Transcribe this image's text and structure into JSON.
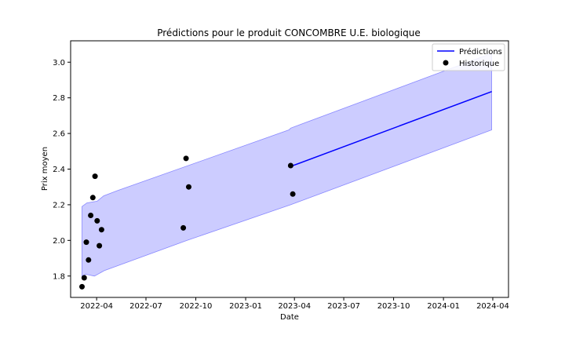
{
  "chart_data": {
    "type": "line",
    "title": "Prédictions pour le produit CONCOMBRE U.E. biologique",
    "xlabel": "Date",
    "ylabel": "Prix moyen",
    "xlim": [
      "2022-02-12",
      "2024-04-30"
    ],
    "ylim": [
      1.68,
      3.12
    ],
    "x_ticks": [
      {
        "date": "2022-04-01",
        "label": "2022-04"
      },
      {
        "date": "2022-07-01",
        "label": "2022-07"
      },
      {
        "date": "2022-10-01",
        "label": "2022-10"
      },
      {
        "date": "2023-01-01",
        "label": "2023-01"
      },
      {
        "date": "2023-04-01",
        "label": "2023-04"
      },
      {
        "date": "2023-07-01",
        "label": "2023-07"
      },
      {
        "date": "2023-10-01",
        "label": "2023-10"
      },
      {
        "date": "2024-01-01",
        "label": "2024-01"
      },
      {
        "date": "2024-04-01",
        "label": "2024-04"
      }
    ],
    "y_ticks": [
      {
        "value": 1.8,
        "label": "1.8"
      },
      {
        "value": 2.0,
        "label": "2.0"
      },
      {
        "value": 2.2,
        "label": "2.2"
      },
      {
        "value": 2.4,
        "label": "2.4"
      },
      {
        "value": 2.6,
        "label": "2.6"
      },
      {
        "value": 2.8,
        "label": "2.8"
      },
      {
        "value": 3.0,
        "label": "3.0"
      }
    ],
    "legend": {
      "position": "top-right",
      "entries": [
        "Prédictions",
        "Historique"
      ]
    },
    "grid": false,
    "series": [
      {
        "name": "Prédictions",
        "type": "line",
        "color": "#0000ff",
        "points": [
          {
            "x": "2023-03-25",
            "y": 2.415
          },
          {
            "x": "2024-03-30",
            "y": 2.835
          }
        ]
      },
      {
        "name": "Historique",
        "type": "scatter",
        "color": "#000000",
        "points": [
          {
            "x": "2022-03-05",
            "y": 1.74
          },
          {
            "x": "2022-03-09",
            "y": 1.79
          },
          {
            "x": "2022-03-13",
            "y": 1.99
          },
          {
            "x": "2022-03-17",
            "y": 1.89
          },
          {
            "x": "2022-03-21",
            "y": 2.14
          },
          {
            "x": "2022-03-25",
            "y": 2.24
          },
          {
            "x": "2022-03-29",
            "y": 2.36
          },
          {
            "x": "2022-04-02",
            "y": 2.11
          },
          {
            "x": "2022-04-06",
            "y": 1.97
          },
          {
            "x": "2022-04-10",
            "y": 2.06
          },
          {
            "x": "2022-09-08",
            "y": 2.07
          },
          {
            "x": "2022-09-13",
            "y": 2.46
          },
          {
            "x": "2022-09-18",
            "y": 2.3
          },
          {
            "x": "2023-03-25",
            "y": 2.42
          },
          {
            "x": "2023-03-29",
            "y": 2.26
          }
        ]
      }
    ],
    "confidence_band": {
      "color": "#ccccff",
      "edge_color": "#8888ff",
      "upper": [
        {
          "x": "2022-03-05",
          "y": 2.19
        },
        {
          "x": "2022-03-14",
          "y": 2.21
        },
        {
          "x": "2022-04-02",
          "y": 2.22
        },
        {
          "x": "2022-04-14",
          "y": 2.25
        },
        {
          "x": "2022-05-10",
          "y": 2.28
        },
        {
          "x": "2023-03-22",
          "y": 2.62
        },
        {
          "x": "2023-03-25",
          "y": 2.63
        },
        {
          "x": "2024-03-30",
          "y": 3.05
        }
      ],
      "lower": [
        {
          "x": "2024-03-30",
          "y": 2.62
        },
        {
          "x": "2023-03-25",
          "y": 2.2
        },
        {
          "x": "2022-09-15",
          "y": 2.0
        },
        {
          "x": "2022-04-15",
          "y": 1.83
        },
        {
          "x": "2022-03-28",
          "y": 1.8
        },
        {
          "x": "2022-03-12",
          "y": 1.81
        },
        {
          "x": "2022-03-05",
          "y": 1.8
        }
      ]
    }
  }
}
